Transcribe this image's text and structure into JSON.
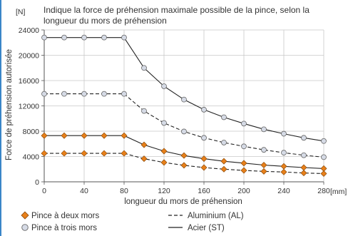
{
  "chart_data": {
    "type": "line",
    "title_lines": [
      "Indique la force de préhension maximale possible de la pince, selon la",
      "longueur du mors de préhension"
    ],
    "xlabel": "longueur du mors de préhension",
    "x_unit": "[mm]",
    "ylabel": "Force de préhension autorisée",
    "y_unit": "[N]",
    "xlim": [
      0,
      280
    ],
    "ylim": [
      0,
      24000
    ],
    "x_ticks": [
      0,
      40,
      80,
      120,
      160,
      200,
      240,
      280
    ],
    "y_ticks": [
      0,
      4000,
      8000,
      12000,
      16000,
      20000,
      24000
    ],
    "grid": true,
    "x": [
      0,
      20,
      40,
      60,
      80,
      100,
      120,
      140,
      160,
      180,
      200,
      220,
      240,
      260,
      280
    ],
    "series": [
      {
        "name_key": "legend.three_jaw",
        "line_key": "legend.steel",
        "marker": "circle",
        "line_style": "solid",
        "values": [
          22800,
          22800,
          22800,
          22800,
          22800,
          18000,
          15100,
          13000,
          11400,
          10200,
          9200,
          8300,
          7600,
          6950,
          6450
        ]
      },
      {
        "name_key": "legend.three_jaw",
        "line_key": "legend.aluminium",
        "marker": "circle",
        "line_style": "dashed",
        "values": [
          13900,
          13900,
          13900,
          13900,
          13900,
          11200,
          9300,
          7950,
          6950,
          6200,
          5600,
          5050,
          4600,
          4200,
          3900
        ]
      },
      {
        "name_key": "legend.two_jaw",
        "line_key": "legend.steel",
        "marker": "diamond",
        "line_style": "solid",
        "values": [
          7300,
          7300,
          7300,
          7300,
          7300,
          5850,
          4850,
          4150,
          3650,
          3250,
          2950,
          2650,
          2450,
          2250,
          2100
        ]
      },
      {
        "name_key": "legend.two_jaw",
        "line_key": "legend.aluminium",
        "marker": "diamond",
        "line_style": "dashed",
        "values": [
          4500,
          4500,
          4500,
          4500,
          4500,
          3650,
          3050,
          2600,
          2250,
          2000,
          1800,
          1650,
          1550,
          1400,
          1300
        ]
      }
    ]
  },
  "legend": {
    "two_jaw": "Pince à deux mors",
    "three_jaw": "Pince à trois mors",
    "aluminium": "Aluminium (AL)",
    "steel": "Acier (ST)"
  },
  "colors": {
    "diamond_marker": "#e8801a",
    "circle_marker_fill": "#d6dbe6",
    "marker_stroke": "#666666",
    "line": "#222222",
    "grid": "#c8c8c8",
    "frame_accent": "#3a86c8"
  }
}
